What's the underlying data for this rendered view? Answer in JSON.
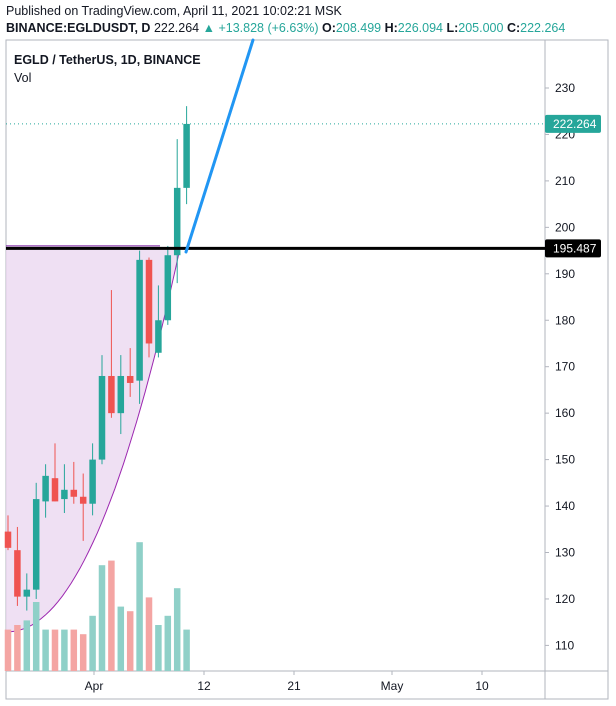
{
  "header": {
    "published": "Published on TradingView.com, April 11, 2021 10:02:21 MSK",
    "symbol": "BINANCE:EGLDUSDT, D",
    "last": "222.264",
    "arrow": "▲",
    "change": "+13.828 (+6.63%)",
    "o_label": "O:",
    "o_value": "208.499",
    "h_label": "H:",
    "h_value": "226.094",
    "l_label": "L:",
    "l_value": "205.000",
    "c_label": "C:",
    "c_value": "222.264"
  },
  "legend": {
    "title": "EGLD / TetherUS, 1D, BINANCE",
    "vol": "Vol"
  },
  "colors": {
    "up": "#26a69a",
    "down": "#ef5350",
    "vol_up": "#8fd0c8",
    "vol_down": "#f4a5a3",
    "trend_line": "#2196f3",
    "horizontal_line": "#000000",
    "fill_zone": "#e9d5ef",
    "curve": "#9c27b0"
  },
  "chart_data": {
    "type": "candlestick",
    "y_axis": {
      "ticks": [
        110,
        120,
        130,
        140,
        150,
        160,
        170,
        180,
        190,
        200,
        210,
        220,
        230
      ]
    },
    "x_axis": {
      "ticks": [
        "Apr",
        "12",
        "21",
        "May",
        "10"
      ]
    },
    "last_price": 222.264,
    "horizontal_level": 195.487,
    "candles": [
      {
        "o": 134.5,
        "h": 138.0,
        "l": 130.5,
        "c": 131.0,
        "vol": 9
      },
      {
        "o": 130.5,
        "h": 135.5,
        "l": 118.5,
        "c": 120.5,
        "vol": 10
      },
      {
        "o": 120.5,
        "h": 125.5,
        "l": 117.5,
        "c": 122.0,
        "vol": 11
      },
      {
        "o": 122.0,
        "h": 145.0,
        "l": 120.0,
        "c": 141.5,
        "vol": 15
      },
      {
        "o": 141.0,
        "h": 149.0,
        "l": 137.5,
        "c": 146.5,
        "vol": 9
      },
      {
        "o": 146.0,
        "h": 153.5,
        "l": 141.0,
        "c": 141.0,
        "vol": 9
      },
      {
        "o": 141.5,
        "h": 149.0,
        "l": 138.5,
        "c": 143.5,
        "vol": 9
      },
      {
        "o": 143.5,
        "h": 149.5,
        "l": 140.5,
        "c": 142.0,
        "vol": 9
      },
      {
        "o": 142.0,
        "h": 147.0,
        "l": 132.5,
        "c": 140.5,
        "vol": 8
      },
      {
        "o": 140.5,
        "h": 153.5,
        "l": 138.0,
        "c": 150.0,
        "vol": 12
      },
      {
        "o": 150.0,
        "h": 172.5,
        "l": 149.0,
        "c": 168.0,
        "vol": 23
      },
      {
        "o": 168.0,
        "h": 186.5,
        "l": 159.0,
        "c": 160.0,
        "vol": 24
      },
      {
        "o": 160.0,
        "h": 172.5,
        "l": 155.5,
        "c": 168.0,
        "vol": 14
      },
      {
        "o": 168.0,
        "h": 174.0,
        "l": 163.5,
        "c": 166.5,
        "vol": 13
      },
      {
        "o": 167.0,
        "h": 195.0,
        "l": 162.0,
        "c": 193.0,
        "vol": 28
      },
      {
        "o": 193.0,
        "h": 193.5,
        "l": 172.0,
        "c": 175.0,
        "vol": 16
      },
      {
        "o": 173.0,
        "h": 187.5,
        "l": 172.0,
        "c": 180.0,
        "vol": 10
      },
      {
        "o": 180.0,
        "h": 196.0,
        "l": 179.0,
        "c": 194.0,
        "vol": 12
      },
      {
        "o": 194.0,
        "h": 219.0,
        "l": 188.0,
        "c": 208.5,
        "vol": 18
      },
      {
        "o": 208.5,
        "h": 226.094,
        "l": 205.0,
        "c": 222.264,
        "vol": 9
      }
    ]
  }
}
